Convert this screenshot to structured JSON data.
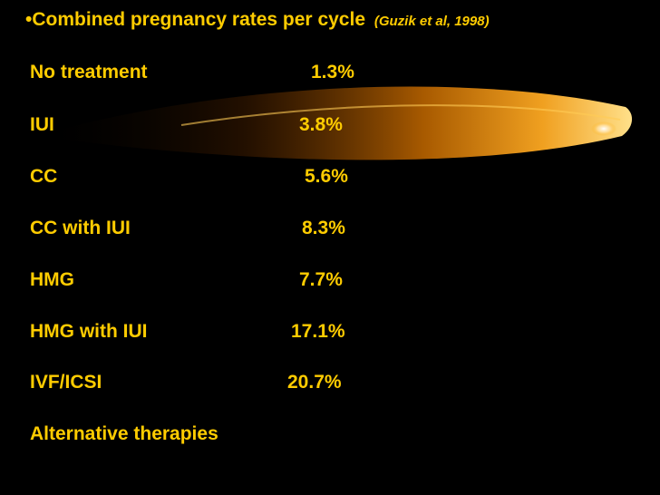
{
  "slide": {
    "heading": {
      "bullet": "•",
      "text": "Combined pregnancy rates per cycle",
      "citation": "(Guzik et al, 1998)"
    },
    "rows": [
      {
        "label": "No treatment",
        "value": "1.3%"
      },
      {
        "label": "IUI",
        "value": "3.8%"
      },
      {
        "label": "CC",
        "value": "5.6%"
      },
      {
        "label": "CC with IUI",
        "value": "8.3%"
      },
      {
        "label": "HMG",
        "value": "7.7%"
      },
      {
        "label": "HMG with IUI",
        "value": "17.1%"
      },
      {
        "label": "IVF/ICSI",
        "value": "20.7%"
      },
      {
        "label": "Alternative therapies",
        "value": ""
      }
    ]
  },
  "colors": {
    "background": "#000000",
    "text": "#ffcc00",
    "swoosh_glow": "#ffffff"
  }
}
